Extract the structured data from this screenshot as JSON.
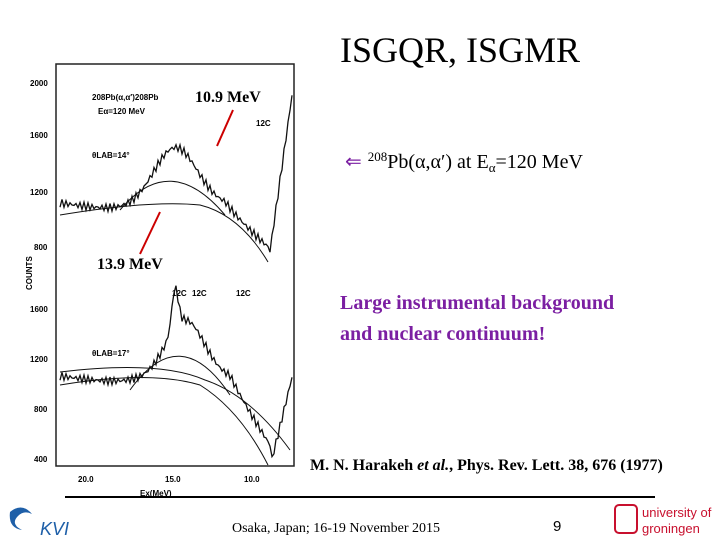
{
  "title": "ISGQR, ISGMR",
  "annotations": {
    "peak_high": "10.9 MeV",
    "peak_low": "13.9 MeV"
  },
  "reaction": {
    "arrow": "⇐",
    "mass": "208",
    "text": "Pb(α,α′) at E",
    "sub": "α",
    "rest": "=120 MeV"
  },
  "remark": [
    "Large instrumental background",
    "and nuclear continuum!"
  ],
  "reference": {
    "authors": "M. N. Harakeh ",
    "etal": "et al.",
    "rest": ", Phys. Rev. Lett. 38, 676 (1977)"
  },
  "footer": {
    "venue": "Osaka, Japan; 16-19 November 2015",
    "page": "9",
    "logo_left": "KVI",
    "logo_right": [
      "university of",
      "groningen"
    ]
  },
  "figure": {
    "y_axis_label": "COUNTS",
    "top_ticks": [
      "2000",
      "1600",
      "1200",
      "800"
    ],
    "bottom_ticks": [
      "1600",
      "1200",
      "800",
      "400"
    ],
    "x_ticks": [
      "20.0",
      "15.0",
      "10.0"
    ],
    "x_label": "Ex(MeV)",
    "reaction": "208Pb(α,α′)208Pb",
    "energy": "Eα=120 MeV",
    "angle_top": "θLAB=14°",
    "angle_bottom": "θLAB=17°",
    "carbon": "12C"
  }
}
